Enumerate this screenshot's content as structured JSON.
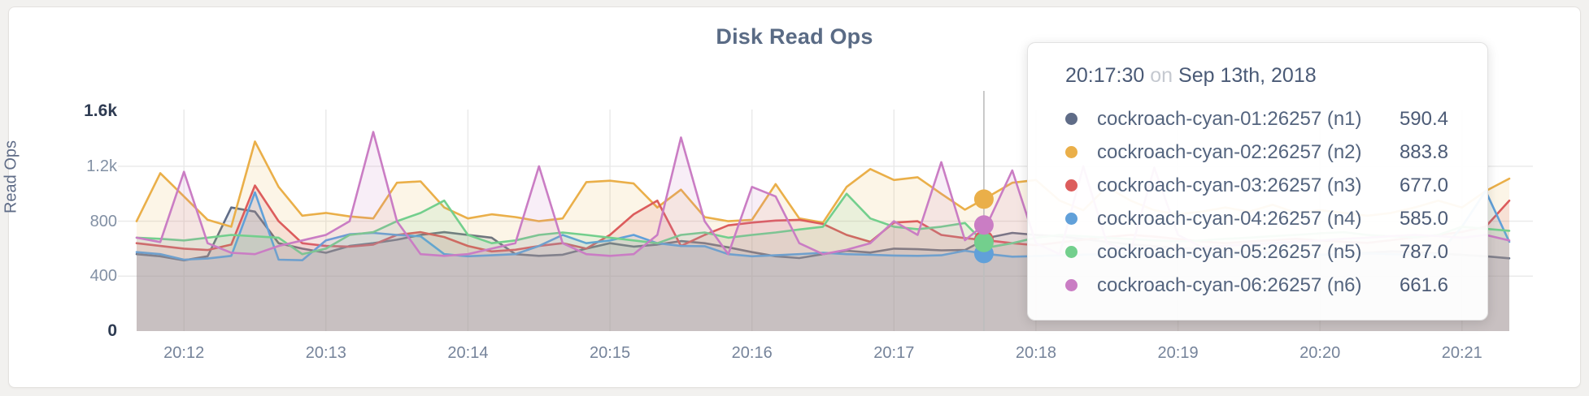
{
  "page": {
    "background": "#f2f1ef"
  },
  "card": {
    "background": "#ffffff",
    "border_color": "#e4e2df"
  },
  "chart_data": {
    "type": "area",
    "title": "Disk Read Ops",
    "ylabel": "Read Ops",
    "legend_position": "tooltip",
    "grid": true,
    "grid_color": "#e9e9e9",
    "hover_line_color": "#bdbdbd",
    "y_max": 1600,
    "ylim": [
      0,
      1600
    ],
    "y_ticks": [
      {
        "label": "0",
        "value": 0,
        "strong": true
      },
      {
        "label": "400",
        "value": 400,
        "strong": false
      },
      {
        "label": "800",
        "value": 800,
        "strong": false
      },
      {
        "label": "1.2k",
        "value": 1200,
        "strong": false
      },
      {
        "label": "1.6k",
        "value": 1600,
        "strong": true
      }
    ],
    "start_time": "20:11:40",
    "interval_seconds": 10,
    "x_ticks": [
      {
        "label": "20:12",
        "t": 20
      },
      {
        "label": "20:13",
        "t": 80
      },
      {
        "label": "20:14",
        "t": 140
      },
      {
        "label": "20:15",
        "t": 200
      },
      {
        "label": "20:16",
        "t": 260
      },
      {
        "label": "20:17",
        "t": 320
      },
      {
        "label": "20:18",
        "t": 380
      },
      {
        "label": "20:19",
        "t": 440
      },
      {
        "label": "20:20",
        "t": 500
      },
      {
        "label": "20:21",
        "t": 560
      }
    ],
    "hover": {
      "time": "20:17:30",
      "joiner": "on",
      "date": "Sep 13th, 2018",
      "t": 350,
      "line_t": 358
    },
    "series": [
      {
        "name": "cockroach-cyan-01:26257 (n1)",
        "node": "n1",
        "color": "#5f6c87",
        "hover_value": "590.4",
        "values": [
          560,
          545,
          515,
          545,
          900,
          870,
          640,
          600,
          570,
          620,
          640,
          665,
          700,
          720,
          700,
          680,
          560,
          548,
          556,
          600,
          640,
          615,
          630,
          655,
          640,
          610,
          575,
          545,
          532,
          560,
          585,
          572,
          600,
          596,
          588,
          590.4,
          680,
          715,
          700,
          690,
          670,
          650,
          632,
          618,
          606,
          596,
          586,
          578,
          570,
          562,
          556,
          560,
          570,
          580,
          575,
          565,
          555,
          545,
          530
        ]
      },
      {
        "name": "cockroach-cyan-02:26257 (n2)",
        "node": "n2",
        "color": "#eaaf49",
        "hover_value": "883.8",
        "values": [
          800,
          1150,
          980,
          810,
          760,
          1380,
          1050,
          840,
          860,
          835,
          820,
          1080,
          1090,
          900,
          820,
          850,
          830,
          800,
          820,
          1085,
          1095,
          1075,
          900,
          1030,
          830,
          800,
          810,
          1070,
          820,
          790,
          1050,
          1180,
          1100,
          1120,
          1000,
          883.8,
          980,
          1080,
          1100,
          950,
          880,
          1050,
          950,
          880,
          850,
          870,
          900,
          870,
          920,
          860,
          880,
          860,
          840,
          860,
          900,
          950,
          900,
          1020,
          1110
        ]
      },
      {
        "name": "cockroach-cyan-03:26257 (n3)",
        "node": "n3",
        "color": "#dc5c5c",
        "hover_value": "677.0",
        "values": [
          640,
          620,
          600,
          590,
          630,
          1060,
          800,
          640,
          620,
          615,
          630,
          700,
          720,
          685,
          620,
          580,
          592,
          620,
          640,
          600,
          700,
          850,
          950,
          620,
          700,
          770,
          790,
          805,
          810,
          780,
          700,
          650,
          790,
          800,
          700,
          677,
          660,
          640,
          625,
          645,
          665,
          685,
          700,
          688,
          670,
          652,
          640,
          652,
          662,
          672,
          660,
          650,
          642,
          662,
          682,
          700,
          722,
          760,
          950
        ]
      },
      {
        "name": "cockroach-cyan-04:26257 (n4)",
        "node": "n4",
        "color": "#61a0d9",
        "hover_value": "585.0",
        "values": [
          575,
          560,
          520,
          528,
          548,
          1010,
          520,
          516,
          660,
          705,
          715,
          700,
          690,
          560,
          545,
          552,
          560,
          620,
          700,
          640,
          660,
          700,
          640,
          620,
          618,
          560,
          545,
          552,
          560,
          570,
          560,
          556,
          550,
          548,
          552,
          585,
          560,
          542,
          546,
          552,
          556,
          560,
          566,
          560,
          554,
          550,
          556,
          560,
          566,
          560,
          556,
          560,
          566,
          560,
          556,
          560,
          760,
          1020,
          650
        ]
      },
      {
        "name": "cockroach-cyan-05:26257 (n5)",
        "node": "n5",
        "color": "#73cf8d",
        "hover_value": "787.0",
        "values": [
          680,
          672,
          660,
          680,
          700,
          690,
          680,
          560,
          600,
          700,
          720,
          800,
          860,
          950,
          700,
          640,
          660,
          700,
          718,
          700,
          680,
          660,
          640,
          700,
          718,
          680,
          700,
          718,
          740,
          760,
          1000,
          820,
          760,
          742,
          760,
          787,
          610,
          640,
          680,
          700,
          690,
          680,
          670,
          660,
          652,
          660,
          672,
          680,
          692,
          700,
          712,
          720,
          700,
          690,
          682,
          700,
          760,
          745,
          730
        ]
      },
      {
        "name": "cockroach-cyan-06:26257 (n6)",
        "node": "n6",
        "color": "#ca7dc4",
        "hover_value": "661.6",
        "values": [
          680,
          648,
          1160,
          640,
          570,
          560,
          620,
          660,
          700,
          800,
          1450,
          800,
          560,
          548,
          560,
          600,
          640,
          1200,
          640,
          560,
          548,
          560,
          700,
          1410,
          800,
          560,
          1050,
          980,
          640,
          560,
          592,
          640,
          800,
          700,
          1230,
          661.6,
          800,
          1170,
          640,
          560,
          1200,
          640,
          580,
          1190,
          700,
          612,
          620,
          632,
          640,
          652,
          660,
          672,
          680,
          692,
          700,
          692,
          680,
          700,
          660
        ]
      }
    ]
  }
}
